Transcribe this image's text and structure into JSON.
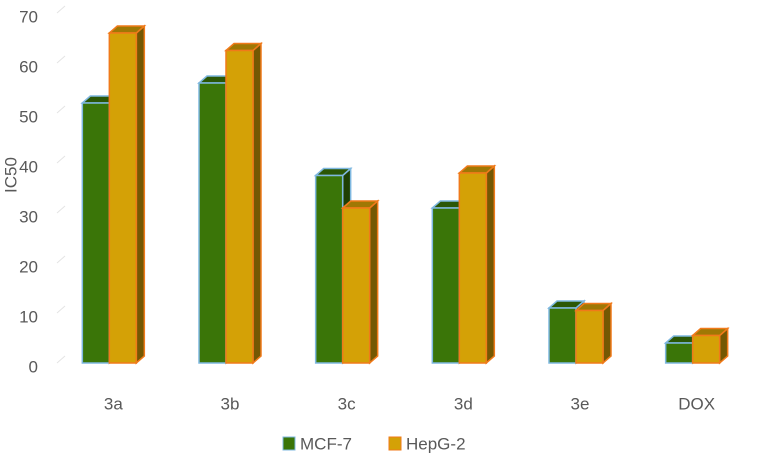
{
  "chart_data": {
    "type": "bar3d",
    "y_label": "IC50",
    "categories": [
      "3a",
      "3b",
      "3c",
      "3d",
      "3e",
      "DOX"
    ],
    "series": [
      {
        "name": "MCF-7",
        "color": "#3a7508",
        "edge": "#7fb8e0",
        "values": [
          52,
          56,
          37.5,
          31,
          11,
          4
        ]
      },
      {
        "name": "HepG-2",
        "color": "#d4a106",
        "edge": "#f07a1a",
        "values": [
          66,
          62.5,
          31,
          38,
          10.5,
          5.5
        ]
      }
    ],
    "ylim": [
      0,
      70
    ],
    "yticks": [
      0,
      10,
      20,
      30,
      40,
      50,
      60,
      70
    ]
  }
}
